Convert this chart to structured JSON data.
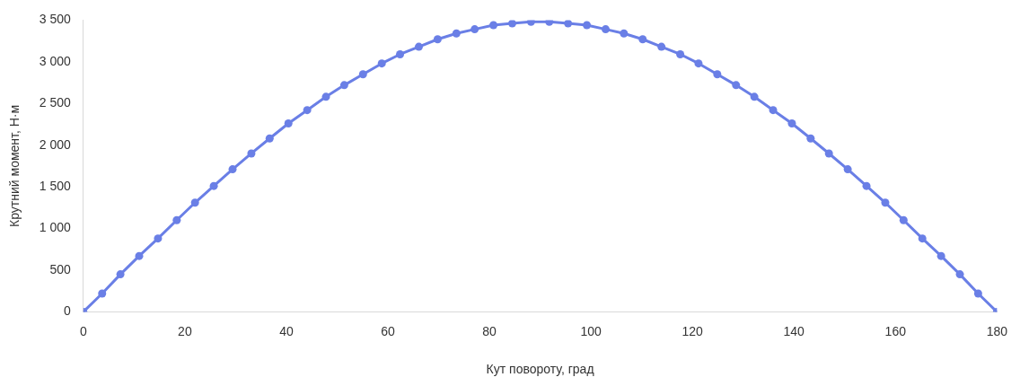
{
  "chart_data": {
    "type": "line",
    "xlabel": "Кут повороту, град",
    "ylabel": "Крутний момент, Н·м",
    "x": [
      0,
      3.7,
      7.3,
      11.0,
      14.7,
      18.4,
      22.0,
      25.7,
      29.4,
      33.1,
      36.7,
      40.4,
      44.1,
      47.8,
      51.4,
      55.1,
      58.8,
      62.4,
      66.1,
      69.8,
      73.5,
      77.1,
      80.8,
      84.5,
      88.2,
      91.8,
      95.5,
      99.2,
      102.9,
      106.5,
      110.2,
      113.9,
      117.6,
      121.2,
      124.9,
      128.6,
      132.2,
      135.9,
      139.6,
      143.3,
      146.9,
      150.6,
      154.3,
      158.0,
      161.6,
      165.3,
      169.0,
      172.7,
      176.3,
      180
    ],
    "series": [
      {
        "color": "#6a7fe6",
        "values": [
          0,
          220,
          450,
          670,
          880,
          1100,
          1310,
          1510,
          1710,
          1900,
          2080,
          2260,
          2420,
          2580,
          2720,
          2850,
          2980,
          3090,
          3180,
          3270,
          3340,
          3390,
          3440,
          3460,
          3480,
          3480,
          3460,
          3440,
          3390,
          3340,
          3270,
          3180,
          3090,
          2980,
          2850,
          2720,
          2580,
          2420,
          2260,
          2080,
          1900,
          1710,
          1510,
          1310,
          1100,
          880,
          670,
          450,
          220,
          0
        ]
      }
    ],
    "xlim": [
      0,
      180
    ],
    "xticks": [
      0,
      20,
      40,
      60,
      80,
      100,
      120,
      140,
      160,
      180
    ],
    "ylim": [
      0,
      3500
    ],
    "yticks": [
      0,
      500,
      {
        "value": 1000,
        "label": "1 000"
      },
      {
        "value": 1500,
        "label": "1 500"
      },
      {
        "value": 2000,
        "label": "2 000"
      },
      {
        "value": 2500,
        "label": "2 500"
      },
      {
        "value": 3000,
        "label": "3 000"
      },
      {
        "value": 3500,
        "label": "3 500"
      }
    ],
    "grid": false,
    "legend": false,
    "marker": "circle",
    "line_style": "solid"
  }
}
